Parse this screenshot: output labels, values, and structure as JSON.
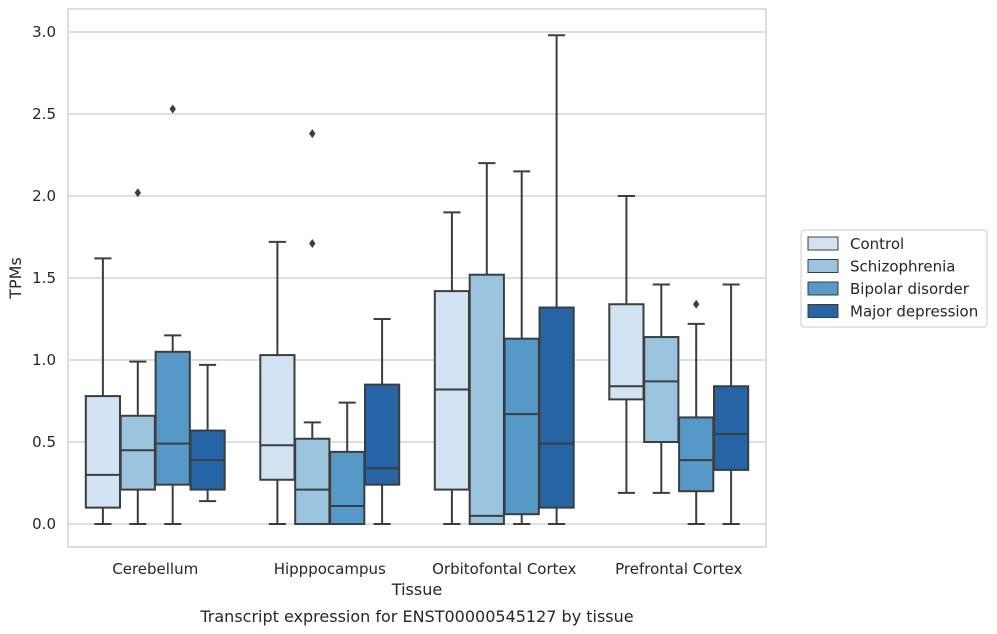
{
  "chart_data": {
    "type": "box",
    "title": "",
    "caption": "Transcript expression for ENST00000545127 by tissue",
    "xlabel": "Tissue",
    "ylabel": "TPMs",
    "ylim": [
      -0.14,
      3.14
    ],
    "yticks": [
      0.0,
      0.5,
      1.0,
      1.5,
      2.0,
      2.5,
      3.0
    ],
    "ytick_labels": [
      "0.0",
      "0.5",
      "1.0",
      "1.5",
      "2.0",
      "2.5",
      "3.0"
    ],
    "grid": "horizontal",
    "legend_position": "right",
    "categories": [
      "Cerebellum",
      "Hipppocampus",
      "Orbitofontal Cortex",
      "Prefrontal Cortex"
    ],
    "series": [
      {
        "name": "Control",
        "color": "#d1e2f2",
        "boxes": [
          {
            "whislo": 0.0,
            "q1": 0.1,
            "med": 0.3,
            "q3": 0.78,
            "whishi": 1.62,
            "fliers": []
          },
          {
            "whislo": 0.0,
            "q1": 0.27,
            "med": 0.48,
            "q3": 1.03,
            "whishi": 1.72,
            "fliers": []
          },
          {
            "whislo": 0.0,
            "q1": 0.21,
            "med": 0.82,
            "q3": 1.42,
            "whishi": 1.9,
            "fliers": []
          },
          {
            "whislo": 0.19,
            "q1": 0.76,
            "med": 0.84,
            "q3": 1.34,
            "whishi": 2.0,
            "fliers": []
          }
        ]
      },
      {
        "name": "Schizophrenia",
        "color": "#9ac3dd",
        "boxes": [
          {
            "whislo": 0.0,
            "q1": 0.21,
            "med": 0.45,
            "q3": 0.66,
            "whishi": 0.99,
            "fliers": [
              2.02
            ]
          },
          {
            "whislo": 0.0,
            "q1": 0.0,
            "med": 0.21,
            "q3": 0.52,
            "whishi": 0.62,
            "fliers": [
              1.71,
              2.38
            ]
          },
          {
            "whislo": 0.0,
            "q1": 0.0,
            "med": 0.05,
            "q3": 1.52,
            "whishi": 2.2,
            "fliers": []
          },
          {
            "whislo": 0.19,
            "q1": 0.5,
            "med": 0.87,
            "q3": 1.14,
            "whishi": 1.46,
            "fliers": []
          }
        ]
      },
      {
        "name": "Bipolar disorder",
        "color": "#5499c8",
        "boxes": [
          {
            "whislo": 0.0,
            "q1": 0.24,
            "med": 0.49,
            "q3": 1.05,
            "whishi": 1.15,
            "fliers": [
              2.53
            ]
          },
          {
            "whislo": 0.0,
            "q1": 0.0,
            "med": 0.11,
            "q3": 0.44,
            "whishi": 0.74,
            "fliers": []
          },
          {
            "whislo": 0.0,
            "q1": 0.06,
            "med": 0.67,
            "q3": 1.13,
            "whishi": 2.15,
            "fliers": []
          },
          {
            "whislo": 0.0,
            "q1": 0.2,
            "med": 0.39,
            "q3": 0.65,
            "whishi": 1.22,
            "fliers": [
              1.34
            ]
          }
        ]
      },
      {
        "name": "Major depression",
        "color": "#2565a5",
        "boxes": [
          {
            "whislo": 0.14,
            "q1": 0.21,
            "med": 0.39,
            "q3": 0.57,
            "whishi": 0.97,
            "fliers": []
          },
          {
            "whislo": 0.0,
            "q1": 0.24,
            "med": 0.34,
            "q3": 0.85,
            "whishi": 1.25,
            "fliers": []
          },
          {
            "whislo": 0.0,
            "q1": 0.1,
            "med": 0.49,
            "q3": 1.32,
            "whishi": 2.98,
            "fliers": []
          },
          {
            "whislo": 0.0,
            "q1": 0.33,
            "med": 0.55,
            "q3": 0.84,
            "whishi": 1.46,
            "fliers": []
          }
        ]
      }
    ]
  }
}
